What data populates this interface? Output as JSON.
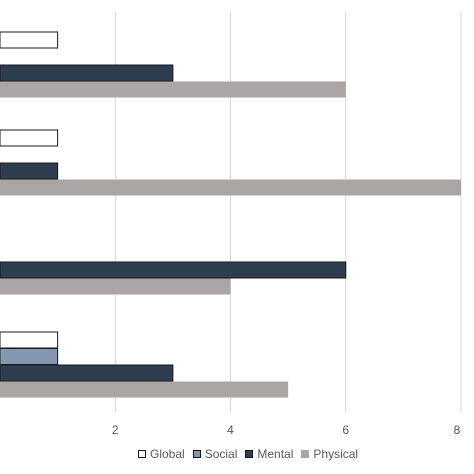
{
  "chart_data": {
    "type": "bar",
    "orientation": "horizontal",
    "xlim": [
      0,
      8
    ],
    "x_ticks": [
      "2",
      "4",
      "6",
      "8"
    ],
    "grid": true,
    "legend_position": "bottom",
    "series": [
      {
        "name": "Global",
        "color": "#ffffff",
        "values": [
          1,
          1,
          null,
          1
        ]
      },
      {
        "name": "Social",
        "color": "#8497b0",
        "values": [
          null,
          null,
          null,
          1
        ]
      },
      {
        "name": "Mental",
        "color": "#2f3d50",
        "values": [
          3,
          1,
          6,
          3
        ]
      },
      {
        "name": "Physical",
        "color": "#aaa6a6",
        "values": [
          6,
          8,
          4,
          5
        ]
      }
    ]
  }
}
